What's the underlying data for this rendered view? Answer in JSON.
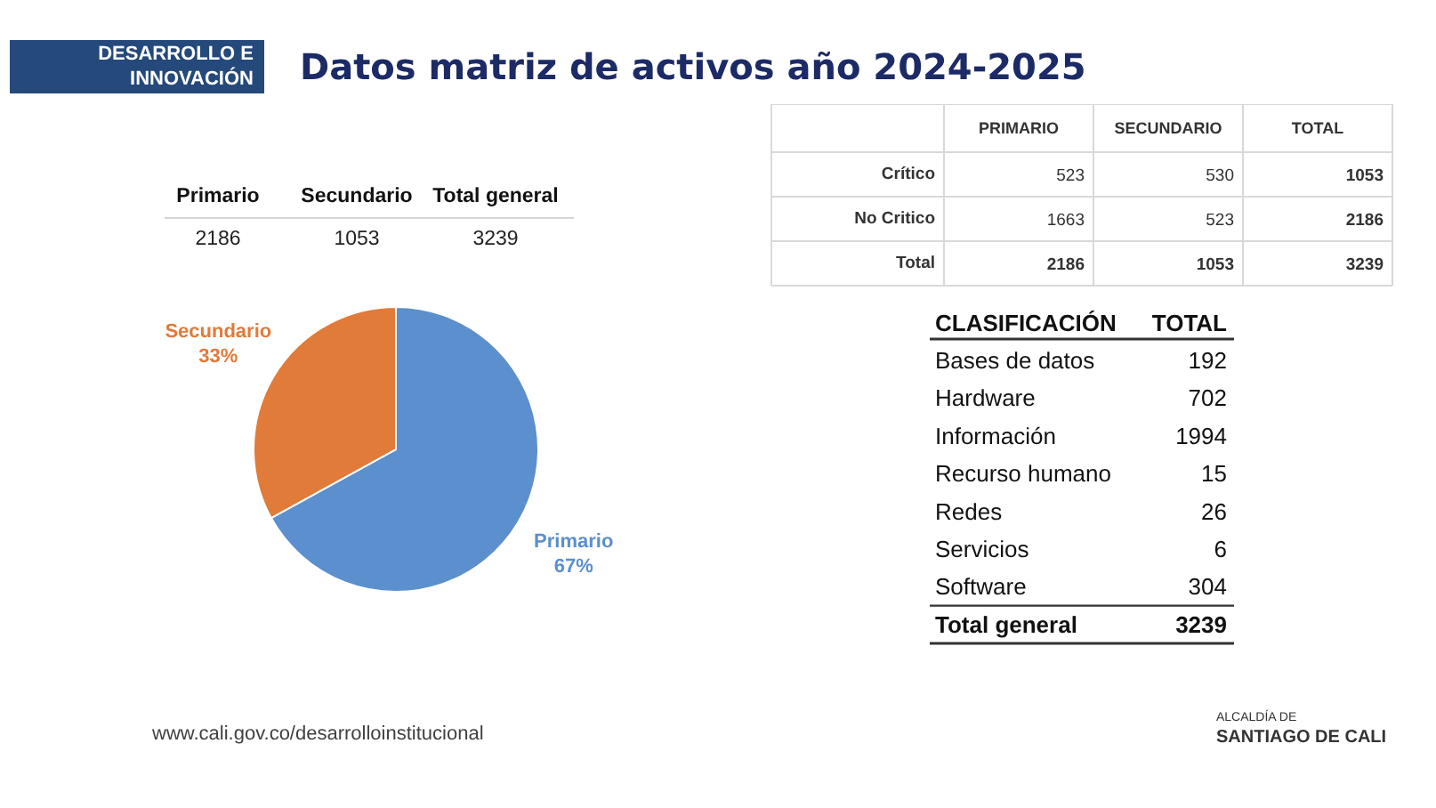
{
  "chart_data": [
    {
      "type": "other",
      "title": "Datos matriz de activos año 2024-2025",
      "annotations": [
        "DESARROLLO E\nINNOVACIÓN"
      ]
    },
    {
      "type": "other",
      "categories": [
        "Primario",
        "Secundario",
        "Total general"
      ],
      "values": [
        2186,
        1053,
        3239
      ],
      "data_labels": true
    },
    {
      "type": "pie",
      "categories": [
        "Primario",
        "Secundario"
      ],
      "values": [
        67,
        33
      ],
      "colors": [
        "#5b8fcd",
        "#e07b39"
      ],
      "value_labels": [
        "67%",
        "33%"
      ]
    },
    {
      "type": "other",
      "categories": [
        "Crítico",
        "No Critico",
        "Total"
      ],
      "series": [
        {
          "name": "PRIMARIO",
          "values": [
            523,
            1663,
            2186
          ]
        },
        {
          "name": "SECUNDARIO",
          "values": [
            530,
            523,
            1053
          ]
        },
        {
          "name": "TOTAL",
          "values": [
            1053,
            2186,
            3239
          ]
        }
      ],
      "data_labels": true
    },
    {
      "type": "other",
      "xlabel": "CLASIFICACIÓN",
      "categories": [
        "Bases de datos",
        "Hardware",
        "Información",
        "Recurso humano",
        "Redes",
        "Servicios",
        "Software",
        "Total general"
      ],
      "series": [
        {
          "name": "TOTAL",
          "values": [
            192,
            702,
            1994,
            15,
            26,
            6,
            304,
            3239
          ]
        }
      ],
      "data_labels": true
    },
    {
      "type": "other",
      "annotations": [
        "www.cali.gov.co/desarrolloinstitucional",
        "ALCALDÍA DE",
        "SANTIAGO DE CALI"
      ]
    }
  ]
}
